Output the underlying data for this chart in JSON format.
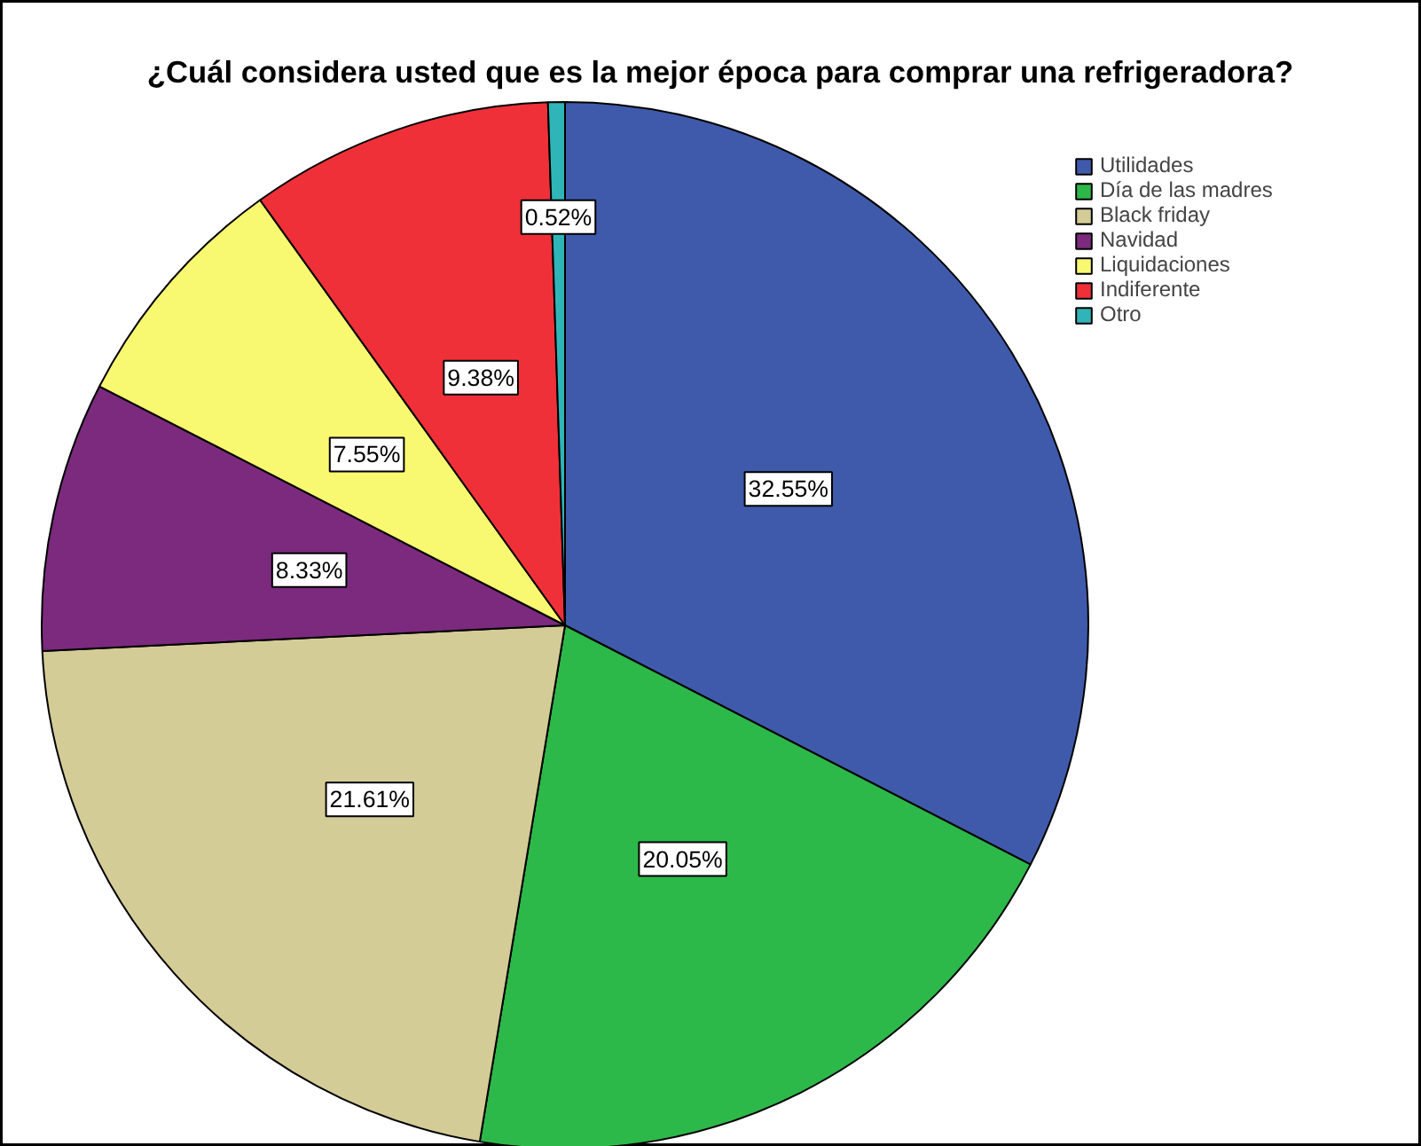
{
  "chart_data": {
    "type": "pie",
    "title": "¿Cuál considera usted que es la mejor época para comprar una refrigeradora?",
    "categories": [
      "Utilidades",
      "Día de las madres",
      "Black friday",
      "Navidad",
      "Liquidaciones",
      "Indiferente",
      "Otro"
    ],
    "values": [
      32.55,
      20.05,
      21.61,
      8.33,
      7.55,
      9.38,
      0.52
    ],
    "colors": [
      "#3f5aab",
      "#2db84a",
      "#d4cc97",
      "#7b2a7e",
      "#f9f871",
      "#ef3038",
      "#2fb5b8"
    ],
    "value_labels": [
      "32.55%",
      "20.05%",
      "21.61%",
      "8.33%",
      "7.55%",
      "9.38%",
      "0.52%"
    ],
    "legend": "top right"
  }
}
